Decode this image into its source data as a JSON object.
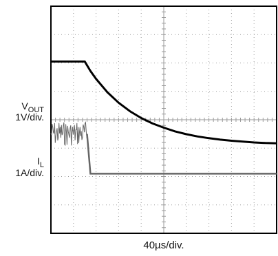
{
  "labels": {
    "vout_name": "V",
    "vout_sub": "OUT",
    "vout_scale": "1V/div.",
    "il_name": "I",
    "il_sub": "L",
    "il_scale": "1A/div.",
    "time_scale": "40µs/div."
  },
  "chart_data": {
    "type": "line",
    "title": "",
    "xlabel": "40µs/div.",
    "grid": true,
    "grid_divisions": {
      "x": 10,
      "y": 8
    },
    "x_unit": "div",
    "xlim": [
      0,
      10
    ],
    "ylim": [
      0,
      8
    ],
    "series": [
      {
        "name": "V_OUT",
        "scale": "1V/div.",
        "color": "#000000",
        "x": [
          0,
          0.25,
          0.5,
          0.75,
          1.0,
          1.25,
          1.5,
          1.75,
          2.0,
          2.5,
          3.0,
          3.5,
          4.0,
          4.5,
          5.0,
          5.5,
          6.0,
          6.5,
          7.0,
          7.5,
          8.0,
          8.5,
          9.0,
          9.5,
          10.0
        ],
        "y": [
          6.05,
          6.05,
          6.05,
          6.05,
          6.05,
          6.05,
          6.05,
          5.72,
          5.44,
          4.97,
          4.6,
          4.3,
          4.06,
          3.87,
          3.72,
          3.59,
          3.49,
          3.41,
          3.35,
          3.3,
          3.26,
          3.23,
          3.2,
          3.18,
          3.17
        ]
      },
      {
        "name": "I_L",
        "scale": "1A/div.",
        "color": "#666666",
        "x": [
          0,
          1.55,
          1.6,
          1.75,
          10.0
        ],
        "y": [
          3.5,
          3.5,
          3.5,
          2.1,
          2.1
        ],
        "ripple_until_x": 1.6,
        "ripple_band": [
          3.08,
          3.95
        ]
      }
    ]
  }
}
